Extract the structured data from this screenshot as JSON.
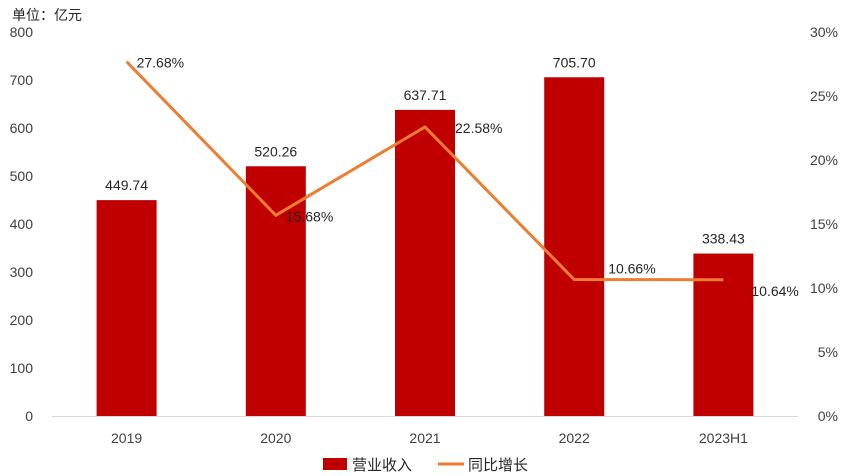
{
  "chart_data": {
    "type": "bar",
    "unit_label": "单位：亿元",
    "categories": [
      "2019",
      "2020",
      "2021",
      "2022",
      "2023H1"
    ],
    "series": [
      {
        "name": "营业收入",
        "type": "bar",
        "axis": "left",
        "values": [
          449.74,
          520.26,
          637.71,
          705.7,
          338.43
        ],
        "labels": [
          "449.74",
          "520.26",
          "637.71",
          "705.70",
          "338.43"
        ],
        "color": "#C00000"
      },
      {
        "name": "同比增长",
        "type": "line",
        "axis": "right",
        "values": [
          27.68,
          15.68,
          22.58,
          10.66,
          10.64
        ],
        "labels": [
          "27.68%",
          "15.68%",
          "22.58%",
          "10.66%",
          "10.64%"
        ],
        "color": "#ED7D31"
      }
    ],
    "left_axis": {
      "min": 0,
      "max": 800,
      "ticks": [
        "0",
        "100",
        "200",
        "300",
        "400",
        "500",
        "600",
        "700",
        "800"
      ]
    },
    "right_axis": {
      "min": 0,
      "max": 30,
      "ticks": [
        "0%",
        "5%",
        "10%",
        "15%",
        "20%",
        "25%",
        "30%"
      ]
    },
    "grid": false,
    "legend_position": "bottom"
  }
}
